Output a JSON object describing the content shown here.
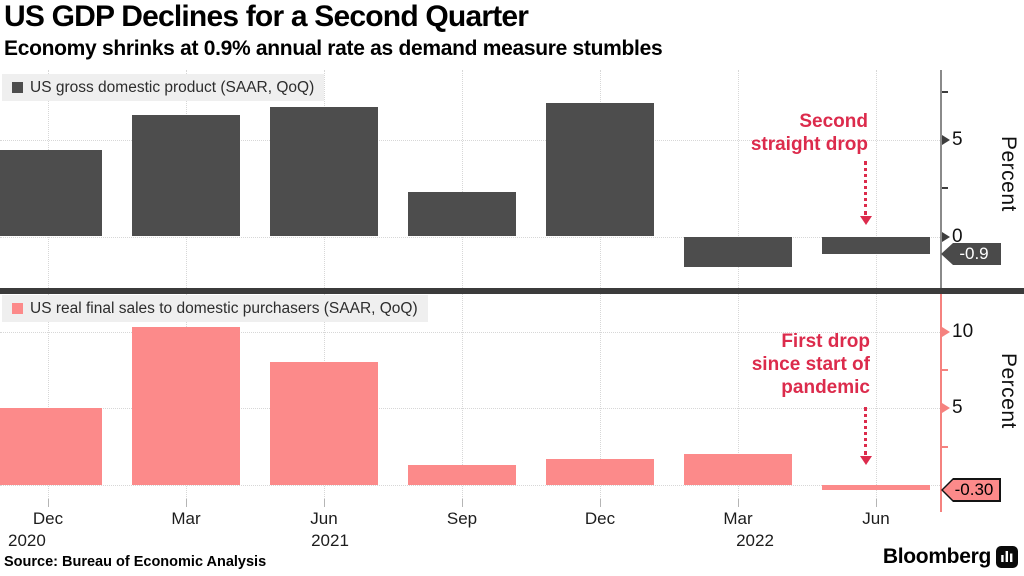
{
  "header": {
    "title": "US GDP Declines for a Second Quarter",
    "subtitle": "Economy shrinks at 0.9% annual rate as demand measure stumbles"
  },
  "chart_data": [
    {
      "type": "bar",
      "title": "US gross domestic product (SAAR, QoQ)",
      "categories": [
        "Dec 2020",
        "Mar 2021",
        "Jun 2021",
        "Sep 2021",
        "Dec 2021",
        "Mar 2022",
        "Jun 2022"
      ],
      "values": [
        4.5,
        6.3,
        6.7,
        2.3,
        6.9,
        -1.6,
        -0.9
      ],
      "ylabel": "Percent",
      "ylim": [
        -2.7,
        8.7
      ],
      "yticks": [
        0,
        2.5,
        5,
        7.5
      ],
      "ytick_labels": {
        "0": "0",
        "5": "5"
      },
      "gridline_values": [
        5,
        0
      ],
      "grid": "dotted",
      "legend_position": "top-left",
      "bar_color": "#4d4d4d",
      "annotation": "Second straight drop",
      "annotation_color": "#dc2b4c",
      "end_value_tag": "-0.9",
      "tag_bg": "#4a4a4a",
      "tag_text_color": "#ffffff",
      "axis_color": "#8a8a8a",
      "tick_color": "#3d3d3d"
    },
    {
      "type": "bar",
      "title": "US real final sales to domestic purchasers (SAAR, QoQ)",
      "categories": [
        "Dec 2020",
        "Mar 2021",
        "Jun 2021",
        "Sep 2021",
        "Dec 2021",
        "Mar 2022",
        "Jun 2022"
      ],
      "values": [
        5.0,
        10.3,
        8.0,
        1.3,
        1.7,
        2.0,
        -0.3
      ],
      "ylabel": "Percent",
      "ylim": [
        -1.4,
        12.5
      ],
      "yticks": [
        2.5,
        5,
        7.5,
        10
      ],
      "ytick_labels": {
        "5": "5",
        "10": "10"
      },
      "gridline_values": [
        10,
        5,
        0
      ],
      "grid": "dotted",
      "legend_position": "top-left",
      "bar_color": "#fc8a8a",
      "annotation": "First drop since start of pandemic",
      "annotation_color": "#dc2b4c",
      "end_value_tag": "-0.30",
      "tag_bg": "#fc8a8a",
      "tag_text_color": "#000000",
      "axis_color": "#f5827f",
      "tick_color": "#f5827f"
    }
  ],
  "x_axis": {
    "quarter_labels": [
      "Dec",
      "Mar",
      "Jun",
      "Sep",
      "Dec",
      "Mar",
      "Jun"
    ],
    "year_labels": [
      "2020",
      "2021",
      "2022"
    ]
  },
  "footer": {
    "source": "Source: Bureau of Economic Analysis",
    "brand": "Bloomberg"
  }
}
